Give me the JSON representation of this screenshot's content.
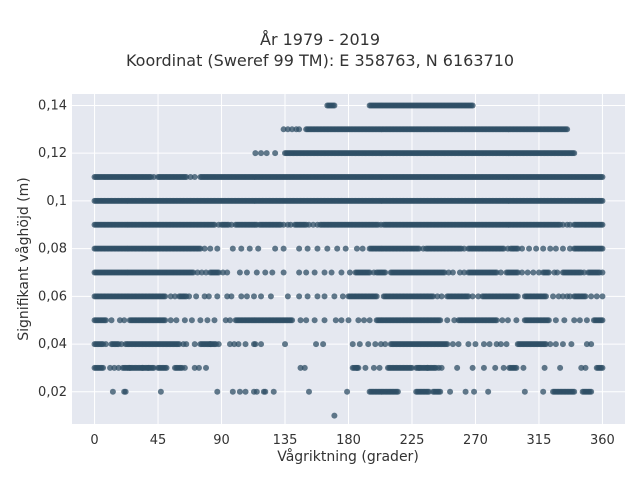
{
  "chart_data": {
    "type": "scatter",
    "title": "År 1979 - 2019",
    "subtitle": "Koordinat (Sweref 99 TM): E 358763, N 6163710",
    "xlabel": "Vågriktning (grader)",
    "ylabel": "Signifikant våghöjd (m)",
    "xlim": [
      -16,
      376
    ],
    "ylim": [
      0.0065,
      0.1448
    ],
    "xticks": [
      0,
      45,
      90,
      135,
      180,
      225,
      270,
      315,
      360
    ],
    "xtick_labels": [
      "0",
      "45",
      "90",
      "135",
      "180",
      "225",
      "270",
      "315",
      "360"
    ],
    "yticks": [
      0.02,
      0.04,
      0.06,
      0.08,
      0.1,
      0.12,
      0.14
    ],
    "ytick_labels": [
      "0,02",
      "0,04",
      "0,06",
      "0,08",
      "0,1",
      "0,12",
      "0,14"
    ],
    "grid": true,
    "background": "#e5e8f0",
    "marker_color": "#2f4f66",
    "series": [
      {
        "bands": [
          {
            "y": 0.01,
            "x": [
              [
                170,
                170
              ]
            ],
            "x_points": []
          },
          {
            "y": 0.02,
            "x": [
              [
                195,
                215
              ],
              [
                228,
                237
              ],
              [
                240,
                245
              ],
              [
                325,
                340
              ],
              [
                346,
                352
              ]
            ],
            "x_points": [
              13,
              21,
              22,
              47,
              87,
              98,
              103,
              107,
              113,
              115,
              120,
              121,
              127,
              152,
              179,
              252,
              263,
              269,
              279,
              305,
              318
            ]
          },
          {
            "y": 0.03,
            "x": [
              [
                0,
                6
              ],
              [
                20,
                42
              ],
              [
                45,
                51
              ],
              [
                57,
                62
              ],
              [
                183,
                187
              ],
              [
                208,
                225
              ],
              [
                228,
                242
              ],
              [
                294,
                299
              ],
              [
                356,
                360
              ]
            ],
            "x_points": [
              11,
              14,
              17,
              25,
              34,
              38,
              64,
              71,
              74,
              79,
              146,
              149,
              186,
              192,
              198,
              202,
              230,
              236,
              244,
              246,
              257,
              268,
              276,
              284,
              290,
              304,
              319,
              330,
              345,
              348
            ]
          },
          {
            "y": 0.04,
            "x": [
              [
                0,
                6
              ],
              [
                12,
                17
              ],
              [
                22,
                60
              ],
              [
                75,
                86
              ],
              [
                210,
                250
              ],
              [
                300,
                320
              ]
            ],
            "x_points": [
              8,
              19,
              63,
              65,
              71,
              82,
              88,
              96,
              99,
              102,
              107,
              113,
              114,
              118,
              135,
              157,
              162,
              183,
              188,
              194,
              199,
              203,
              206,
              254,
              258,
              265,
              270,
              276,
              280,
              285,
              288,
              292,
              323,
              327,
              332,
              338,
              349,
              352
            ]
          },
          {
            "y": 0.05,
            "x": [
              [
                0,
                8
              ],
              [
                25,
                50
              ],
              [
                100,
                140
              ],
              [
                200,
                245
              ],
              [
                258,
                285
              ],
              [
                305,
                322
              ],
              [
                354,
                360
              ]
            ],
            "x_points": [
              12,
              18,
              21,
              54,
              58,
              64,
              69,
              75,
              80,
              85,
              93,
              96,
              146,
              150,
              156,
              163,
              171,
              175,
              180,
              187,
              191,
              195,
              250,
              255,
              289,
              293,
              299,
              327,
              333,
              340,
              344,
              349
            ]
          },
          {
            "y": 0.06,
            "x": [
              [
                0,
                50
              ],
              [
                60,
                65
              ],
              [
                180,
                200
              ],
              [
                205,
                240
              ],
              [
                250,
                265
              ],
              [
                275,
                300
              ],
              [
                305,
                320
              ],
              [
                340,
                348
              ]
            ],
            "x_points": [
              54,
              57,
              67,
              72,
              78,
              81,
              87,
              94,
              97,
              104,
              108,
              113,
              118,
              125,
              137,
              145,
              151,
              158,
              163,
              170,
              176,
              243,
              246,
              268,
              272,
              325,
              329,
              332,
              335,
              337,
              352,
              356,
              360
            ]
          },
          {
            "y": 0.07,
            "x": [
              [
                0,
                70
              ],
              [
                82,
                88
              ],
              [
                185,
                195
              ],
              [
                200,
                205
              ],
              [
                210,
                248
              ],
              [
                265,
                285
              ],
              [
                292,
                300
              ],
              [
                318,
                322
              ],
              [
                332,
                345
              ],
              [
                350,
                358
              ]
            ],
            "x_points": [
              73,
              76,
              79,
              91,
              94,
              103,
              108,
              115,
              121,
              126,
              134,
              145,
              150,
              156,
              163,
              168,
              175,
              181,
              198,
              206,
              251,
              254,
              259,
              262,
              288,
              303,
              307,
              311,
              315,
              326,
              328,
              347,
              360
            ]
          },
          {
            "y": 0.08,
            "x": [
              [
                0,
                75
              ],
              [
                195,
                230
              ],
              [
                235,
                260
              ],
              [
                265,
                290
              ],
              [
                295,
                300
              ],
              [
                340,
                360
              ]
            ],
            "x_points": [
              78,
              82,
              87,
              98,
              104,
              110,
              116,
              128,
              134,
              145,
              151,
              158,
              165,
              172,
              178,
              186,
              190,
              233,
              262,
              293,
              303,
              308,
              313,
              318,
              323,
              327,
              332,
              337
            ]
          },
          {
            "y": 0.09,
            "x": [
              [
                0,
                85
              ],
              [
                90,
                95
              ],
              [
                100,
                115
              ],
              [
                118,
                132
              ],
              [
                142,
                150
              ],
              [
                160,
                200
              ],
              [
                205,
                330
              ],
              [
                340,
                360
              ]
            ],
            "x_points": [
              88,
              97,
              117,
              134,
              137,
              139,
              152,
              155,
              158,
              201,
              203,
              332,
              335,
              337
            ]
          },
          {
            "y": 0.1,
            "x": [
              [
                0,
                360
              ]
            ],
            "x_points": []
          },
          {
            "y": 0.11,
            "x": [
              [
                0,
                40
              ],
              [
                45,
                65
              ],
              [
                75,
                360
              ]
            ],
            "x_points": [
              42,
              68,
              71
            ]
          },
          {
            "y": 0.12,
            "x": [
              [
                135,
                340
              ]
            ],
            "x_points": [
              114,
              118,
              122,
              128
            ]
          },
          {
            "y": 0.13,
            "x": [
              [
                150,
                335
              ]
            ],
            "x_points": [
              134,
              137,
              140,
              143,
              145
            ]
          },
          {
            "y": 0.14,
            "x": [
              [
                165,
                170
              ],
              [
                195,
                268
              ]
            ],
            "x_points": []
          }
        ]
      }
    ]
  }
}
